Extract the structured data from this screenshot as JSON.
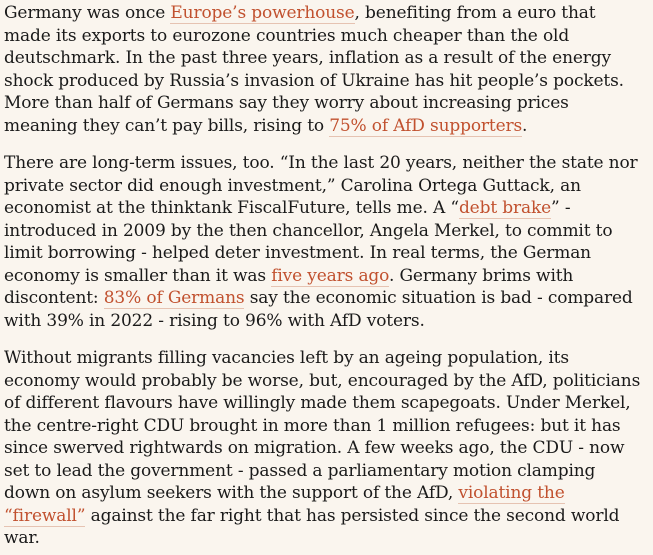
{
  "colors": {
    "background": "#faf5ee",
    "text": "#1a1a1a",
    "link": "#c1512f",
    "link_underline": "#e6c3b2"
  },
  "article": {
    "paragraphs": [
      {
        "segments": [
          {
            "text": "Germany was once ",
            "link": false
          },
          {
            "text": "Europe’s powerhouse",
            "link": true
          },
          {
            "text": ", benefiting from a euro that made its exports to eurozone countries much cheaper than the old deutschmark. In the past three years, inflation as a result of the energy shock produced by Russia’s invasion of Ukraine has hit people’s pockets. More than half of Germans say they worry about increasing prices meaning they can’t pay bills, rising to ",
            "link": false
          },
          {
            "text": "75% of AfD supporters",
            "link": true
          },
          {
            "text": ".",
            "link": false
          }
        ]
      },
      {
        "segments": [
          {
            "text": "There are long-term issues, too. “In the last 20 years, neither the state nor private sector did enough investment,” Carolina Ortega Guttack, an economist at the thinktank FiscalFuture, tells me. A “",
            "link": false
          },
          {
            "text": "debt brake",
            "link": true
          },
          {
            "text": "” - introduced in 2009 by the then chancellor, Angela Merkel, to commit to limit borrowing - helped deter investment. In real terms, the German economy is smaller than it was ",
            "link": false
          },
          {
            "text": "five years ago",
            "link": true
          },
          {
            "text": ". Germany brims with discontent: ",
            "link": false
          },
          {
            "text": "83% of Germans",
            "link": true
          },
          {
            "text": " say the economic situation is bad - compared with 39% in 2022 - rising to 96% with AfD voters.",
            "link": false
          }
        ]
      },
      {
        "segments": [
          {
            "text": "Without migrants filling vacancies left by an ageing population, its economy would probably be worse, but, encouraged by the AfD, politicians of different flavours have willingly made them scapegoats. Under Merkel, the centre-right CDU brought in more than 1 million refugees: but it has since swerved rightwards on migration. A few weeks ago, the CDU - now set to lead the government - passed a parliamentary motion clamping down on asylum seekers with the support of the AfD, ",
            "link": false
          },
          {
            "text": "violating the “firewall”",
            "link": true
          },
          {
            "text": " against the far right that has persisted since the second world war.",
            "link": false
          }
        ]
      }
    ]
  }
}
